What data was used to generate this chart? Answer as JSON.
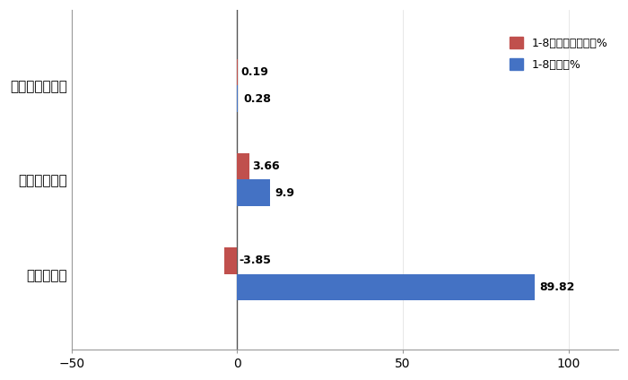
{
  "categories": [
    "纯电动重卡",
    "燃料电池重卡",
    "插电式混动重卡"
  ],
  "series1_label": "1-8月占比同比增减%",
  "series1_color": "#C0504D",
  "series1_values": [
    -3.85,
    3.66,
    0.19
  ],
  "series2_label": "1-8月占比%",
  "series2_color": "#4472C4",
  "series2_values": [
    89.82,
    9.9,
    0.28
  ],
  "series1_annotations": [
    "-3.85",
    "3.66",
    "0.19"
  ],
  "series2_annotations": [
    "89.82",
    "9.9",
    "0.28"
  ],
  "xlim": [
    -50,
    115
  ],
  "xticks": [
    -50,
    0,
    50,
    100
  ],
  "bar_height": 0.28,
  "background_color": "#ffffff"
}
